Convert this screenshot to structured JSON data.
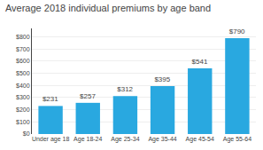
{
  "chart_data": {
    "type": "bar",
    "title": "Average 2018 individual premiums by age band",
    "categories": [
      "Under age 18",
      "Age 18-24",
      "Age 25-34",
      "Age 35-44",
      "Age 45-54",
      "Age 55-64"
    ],
    "values": [
      231,
      257,
      312,
      395,
      541,
      790
    ],
    "value_labels": [
      "$231",
      "$257",
      "$312",
      "$395",
      "$541",
      "$790"
    ],
    "data_labels": true,
    "color": "#29a8e0",
    "ylim": [
      0,
      870
    ],
    "yticks": [
      {
        "value": 0,
        "label": "$0"
      },
      {
        "value": 100,
        "label": "$100"
      },
      {
        "value": 200,
        "label": "$200"
      },
      {
        "value": 300,
        "label": "$300"
      },
      {
        "value": 400,
        "label": "$400"
      },
      {
        "value": 500,
        "label": "$500"
      },
      {
        "value": 600,
        "label": "$600"
      },
      {
        "value": 700,
        "label": "$700"
      },
      {
        "value": 800,
        "label": "$800"
      }
    ],
    "grid": true
  }
}
